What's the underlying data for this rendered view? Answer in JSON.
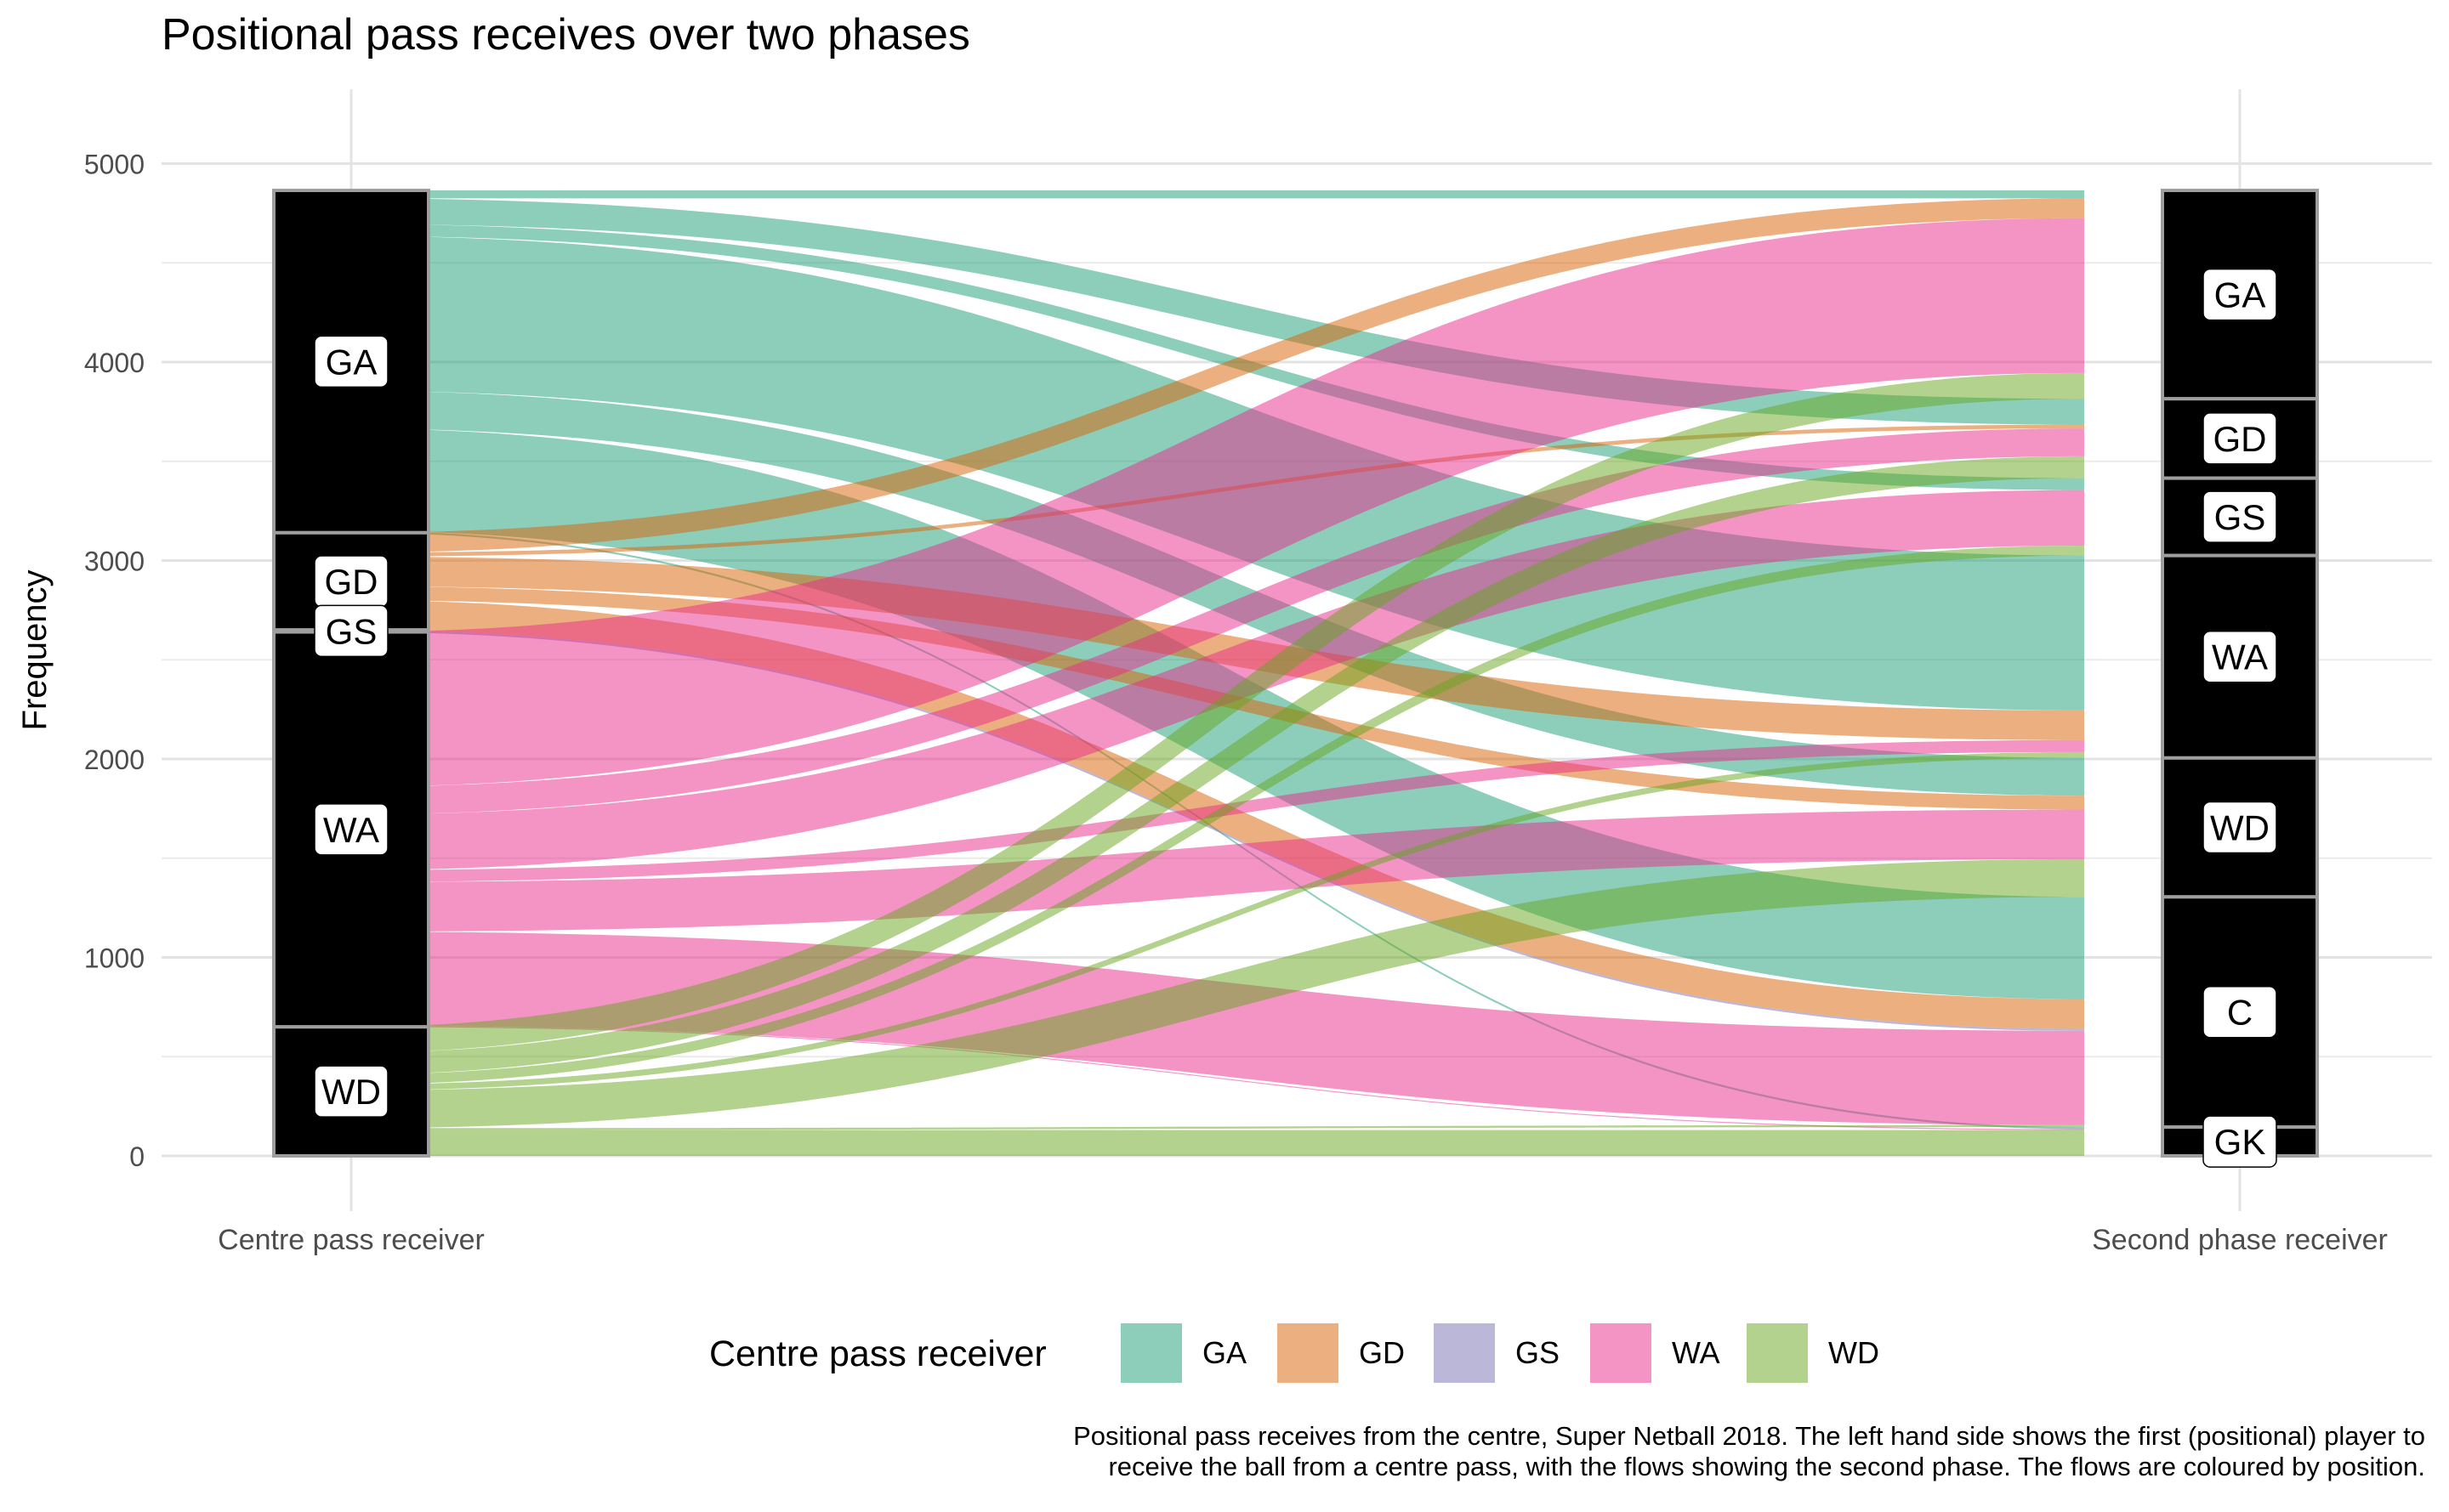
{
  "chart_data": {
    "type": "alluvial",
    "title": "Positional pass receives over two phases",
    "ylabel": "Frequency",
    "ylim": [
      0,
      5200
    ],
    "yticks": [
      0,
      1000,
      2000,
      3000,
      4000,
      5000
    ],
    "grid": true,
    "axes": [
      {
        "label": "Centre pass receiver",
        "strata": [
          "GA",
          "GD",
          "GS",
          "WA",
          "WD"
        ]
      },
      {
        "label": "Second phase receiver",
        "strata": [
          "GA",
          "GD",
          "GS",
          "WA",
          "WD",
          "C",
          "GK"
        ]
      }
    ],
    "legend": {
      "title": "Centre pass receiver",
      "position": "bottom",
      "items": [
        "GA",
        "GD",
        "GS",
        "WA",
        "WD"
      ]
    },
    "colors": {
      "GA": "#1b9e77",
      "GD": "#d95f02",
      "GS": "#7570b3",
      "WA": "#e7298a",
      "WD": "#66a61e"
    },
    "flows": [
      {
        "from": "GA",
        "to": "GA",
        "value": 40
      },
      {
        "from": "GA",
        "to": "GD",
        "value": 130
      },
      {
        "from": "GA",
        "to": "GS",
        "value": 60
      },
      {
        "from": "GA",
        "to": "WA",
        "value": 780
      },
      {
        "from": "GA",
        "to": "WD",
        "value": 190
      },
      {
        "from": "GA",
        "to": "C",
        "value": 515
      },
      {
        "from": "GA",
        "to": "GK",
        "value": 10
      },
      {
        "from": "GD",
        "to": "GA",
        "value": 100
      },
      {
        "from": "GD",
        "to": "GD",
        "value": 20
      },
      {
        "from": "GD",
        "to": "WA",
        "value": 150
      },
      {
        "from": "GD",
        "to": "WD",
        "value": 70
      },
      {
        "from": "GD",
        "to": "C",
        "value": 150
      },
      {
        "from": "GS",
        "to": "C",
        "value": 10
      },
      {
        "from": "WA",
        "to": "GA",
        "value": 780
      },
      {
        "from": "WA",
        "to": "GD",
        "value": 140
      },
      {
        "from": "WA",
        "to": "GS",
        "value": 280
      },
      {
        "from": "WA",
        "to": "WA",
        "value": 60
      },
      {
        "from": "WA",
        "to": "WD",
        "value": 250
      },
      {
        "from": "WA",
        "to": "C",
        "value": 475
      },
      {
        "from": "WA",
        "to": "GK",
        "value": 5
      },
      {
        "from": "WD",
        "to": "GA",
        "value": 130
      },
      {
        "from": "WD",
        "to": "GD",
        "value": 110
      },
      {
        "from": "WD",
        "to": "GS",
        "value": 50
      },
      {
        "from": "WD",
        "to": "WA",
        "value": 30
      },
      {
        "from": "WD",
        "to": "WD",
        "value": 190
      },
      {
        "from": "WD",
        "to": "C",
        "value": 10
      },
      {
        "from": "WD",
        "to": "GK",
        "value": 130
      }
    ],
    "caption": [
      "Positional pass receives from the centre, Super Netball 2018. The left hand side shows the first (positional) player to",
      "receive the ball from a centre pass, with the flows showing the second phase. The flows are coloured by position."
    ]
  }
}
